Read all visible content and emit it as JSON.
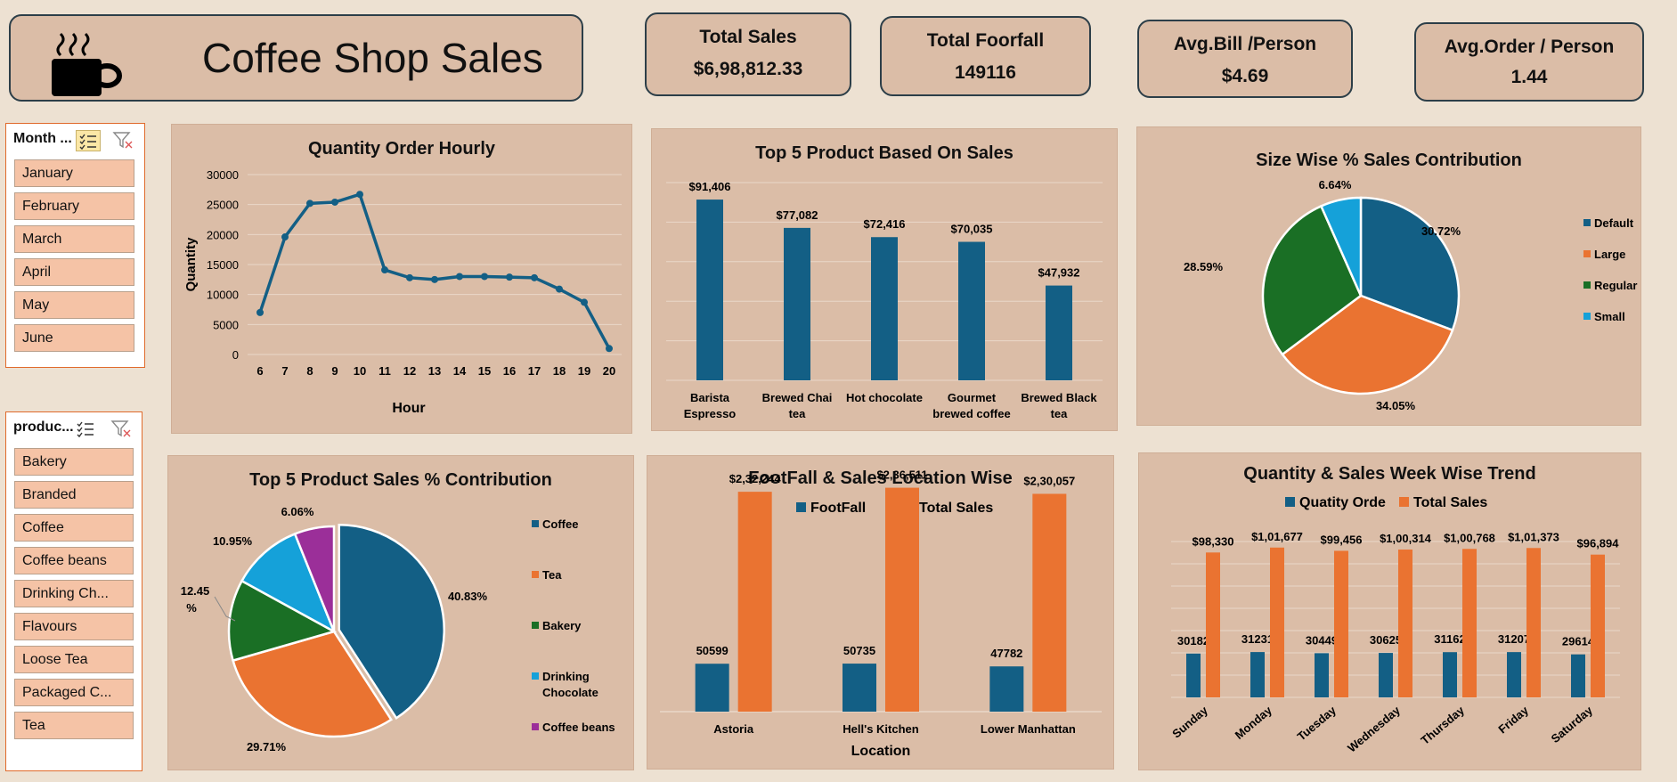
{
  "header": {
    "title": "Coffee Shop Sales",
    "logo_icon": "coffee-cup-icon"
  },
  "kpis": [
    {
      "label": "Total Sales",
      "value": "$6,98,812.33"
    },
    {
      "label": "Total Foorfall",
      "value": "149116"
    },
    {
      "label": "Avg.Bill /Person",
      "value": "$4.69"
    },
    {
      "label": "Avg.Order / Person",
      "value": "1.44"
    }
  ],
  "slicers": {
    "month": {
      "title": "Month ...",
      "items": [
        "January",
        "February",
        "March",
        "April",
        "May",
        "June"
      ]
    },
    "product": {
      "title": "produc...",
      "items": [
        "Bakery",
        "Branded",
        "Coffee",
        "Coffee beans",
        "Drinking Ch...",
        "Flavours",
        "Loose Tea",
        "Packaged C...",
        "Tea"
      ]
    }
  },
  "colors": {
    "blue": "#135f85",
    "orange": "#ea7331",
    "green": "#1a6f25",
    "lightblue": "#15a1d9",
    "purple": "#9b2f99",
    "panel": "#dbbda7",
    "background": "#ede1d2"
  },
  "chart_data": [
    {
      "id": "hourly",
      "type": "line",
      "title": "Quantity Order Hourly",
      "xlabel": "Hour",
      "ylabel": "Quantity",
      "x": [
        "6",
        "7",
        "8",
        "9",
        "10",
        "11",
        "12",
        "13",
        "14",
        "15",
        "16",
        "17",
        "18",
        "19",
        "20"
      ],
      "values": [
        7000,
        19600,
        25200,
        25400,
        26700,
        14100,
        12800,
        12500,
        13000,
        13000,
        12900,
        12800,
        10900,
        8700,
        1000
      ],
      "yticks": [
        "30000",
        "25000",
        "20000",
        "15000",
        "10000",
        "5000",
        "0"
      ],
      "ylim": [
        0,
        30000
      ],
      "grid": true
    },
    {
      "id": "top5",
      "type": "bar",
      "title": "Top 5 Product Based On Sales",
      "categories": [
        "Barista Espresso",
        "Brewed Chai tea",
        "Hot chocolate",
        "Gourmet brewed coffee",
        "Brewed Black tea"
      ],
      "values": [
        91406,
        77082,
        72416,
        70035,
        47932
      ],
      "labels": [
        "$91,406",
        "$77,082",
        "$72,416",
        "$70,035",
        "$47,932"
      ],
      "ylim": [
        0,
        100000
      ],
      "grid": true
    },
    {
      "id": "size",
      "type": "pie",
      "title": "Size Wise % Sales Contribution",
      "categories": [
        "Default",
        "Large",
        "Regular",
        "Small"
      ],
      "values": [
        30.72,
        34.05,
        28.59,
        6.64
      ],
      "labels": [
        "30.72%",
        "34.05%",
        "28.59%",
        "6.64%"
      ],
      "legend": "right"
    },
    {
      "id": "prodpie",
      "type": "pie",
      "title": "Top 5  Product Sales % Contribution",
      "categories": [
        "Coffee",
        "Tea",
        "Bakery",
        "Drinking Chocolate",
        "Coffee beans"
      ],
      "values": [
        40.83,
        29.71,
        12.45,
        10.95,
        6.06
      ],
      "labels": [
        "40.83%",
        "29.71%",
        "12.45 %",
        "10.95%",
        "6.06%"
      ],
      "legend": "right"
    },
    {
      "id": "location",
      "type": "bar",
      "title": "FootFall & Sales Location Wise",
      "xlabel": "Location",
      "categories": [
        "Astoria",
        "Hell's Kitchen",
        "Lower Manhattan"
      ],
      "series": [
        {
          "name": "FootFall",
          "values": [
            50599,
            50735,
            47782
          ],
          "labels": [
            "50599",
            "50735",
            "47782"
          ]
        },
        {
          "name": "Total Sales",
          "values": [
            232244,
            236511,
            230057
          ],
          "labels": [
            "$2,32,244",
            "$2,36,511",
            "$2,30,057"
          ]
        }
      ],
      "legend": "top"
    },
    {
      "id": "weekly",
      "type": "bar",
      "title": "Quantity & Sales Week  Wise Trend",
      "categories": [
        "Sunday",
        "Monday",
        "Tuesday",
        "Wednesday",
        "Thursday",
        "Friday",
        "Saturday"
      ],
      "series": [
        {
          "name": "Quatity Orde",
          "values": [
            30182,
            31231,
            30449,
            30625,
            31162,
            31207,
            29614
          ],
          "labels": [
            "30182",
            "31231",
            "30449",
            "30625",
            "31162",
            "31207",
            "29614"
          ]
        },
        {
          "name": "Total Sales",
          "values": [
            98330,
            101677,
            99456,
            100314,
            100768,
            101373,
            96894
          ],
          "labels": [
            "$98,330",
            "$1,01,677",
            "$99,456",
            "$1,00,314",
            "$1,00,768",
            "$1,01,373",
            "$96,894"
          ]
        }
      ],
      "legend": "top"
    }
  ]
}
